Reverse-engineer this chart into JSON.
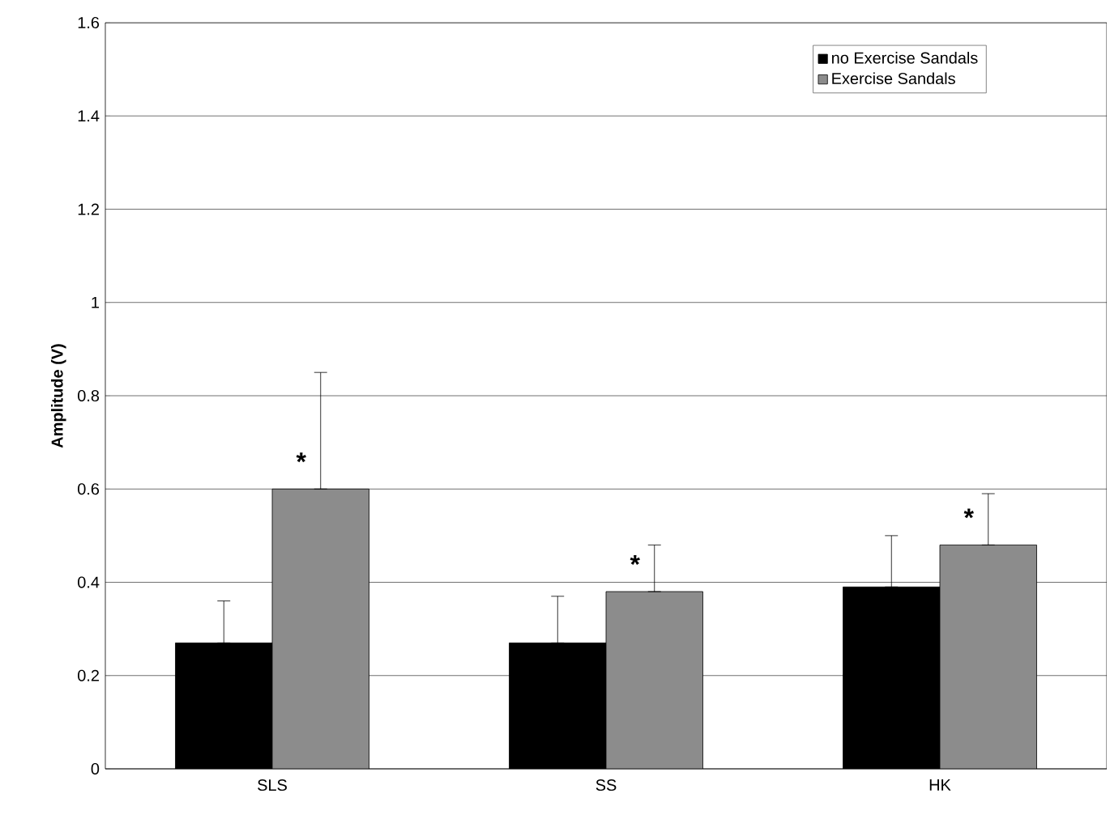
{
  "chart_data": {
    "type": "bar",
    "ylabel": "Amplitude (V)",
    "categories": [
      "SLS",
      "SS",
      "HK"
    ],
    "series": [
      {
        "name": "no Exercise Sandals",
        "color": "#000000",
        "values": [
          0.27,
          0.27,
          0.39
        ],
        "errors": [
          [
            0.27,
            0.36
          ],
          [
            0.27,
            0.37
          ],
          [
            0.39,
            0.5
          ]
        ]
      },
      {
        "name": "Exercise Sandals",
        "color": "#8c8c8c",
        "values": [
          0.6,
          0.38,
          0.48
        ],
        "errors": [
          [
            0.6,
            0.85
          ],
          [
            0.38,
            0.48
          ],
          [
            0.48,
            0.59
          ]
        ]
      }
    ],
    "ylim": [
      0,
      1.6
    ],
    "yticks": [
      0,
      0.2,
      0.4,
      0.6,
      0.8,
      1,
      1.2,
      1.4,
      1.6
    ],
    "grid": "y",
    "legend": "top right",
    "annotations": [
      "*",
      "*",
      "*"
    ]
  }
}
